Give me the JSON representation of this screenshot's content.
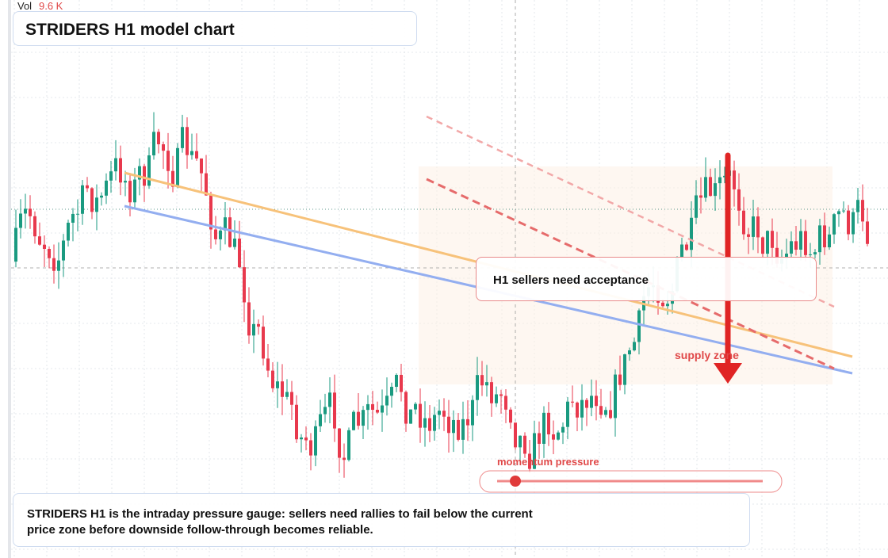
{
  "header": {
    "vol_label": "Vol",
    "vol_value": "9.6 K",
    "title": "STRIDERS H1 model chart"
  },
  "annotations": {
    "callout": "H1 sellers need acceptance",
    "zone": "supply zone",
    "gauge": "momentum pressure"
  },
  "caption": "STRIDERS H1 is the intraday pressure gauge: sellers need rallies to fail below the current price zone before downside follow-through becomes reliable."
}
